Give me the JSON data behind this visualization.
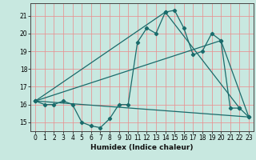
{
  "xlabel": "Humidex (Indice chaleur)",
  "ylabel": "",
  "xlim": [
    -0.5,
    23.5
  ],
  "ylim": [
    14.5,
    21.7
  ],
  "yticks": [
    15,
    16,
    17,
    18,
    19,
    20,
    21
  ],
  "xticks": [
    0,
    1,
    2,
    3,
    4,
    5,
    6,
    7,
    8,
    9,
    10,
    11,
    12,
    13,
    14,
    15,
    16,
    17,
    18,
    19,
    20,
    21,
    22,
    23
  ],
  "bg_color": "#c8e8e0",
  "line_color": "#1a6b6b",
  "grid_color": "#e89090",
  "series1_x": [
    0,
    1,
    2,
    3,
    4,
    5,
    6,
    7,
    8,
    9,
    10,
    11,
    12,
    13,
    14,
    15,
    16,
    17,
    18,
    19,
    20,
    21,
    22,
    23
  ],
  "series1_y": [
    16.2,
    16.0,
    16.0,
    16.2,
    16.0,
    15.0,
    14.8,
    14.7,
    15.2,
    16.0,
    16.0,
    19.5,
    20.3,
    20.0,
    21.2,
    21.3,
    20.3,
    18.8,
    19.0,
    20.0,
    19.6,
    15.8,
    15.8,
    15.3
  ],
  "series2_x": [
    0,
    14,
    22
  ],
  "series2_y": [
    16.2,
    21.2,
    15.8
  ],
  "series3_x": [
    0,
    20,
    23
  ],
  "series3_y": [
    16.2,
    19.6,
    15.3
  ],
  "series4_x": [
    0,
    23
  ],
  "series4_y": [
    16.2,
    15.3
  ]
}
